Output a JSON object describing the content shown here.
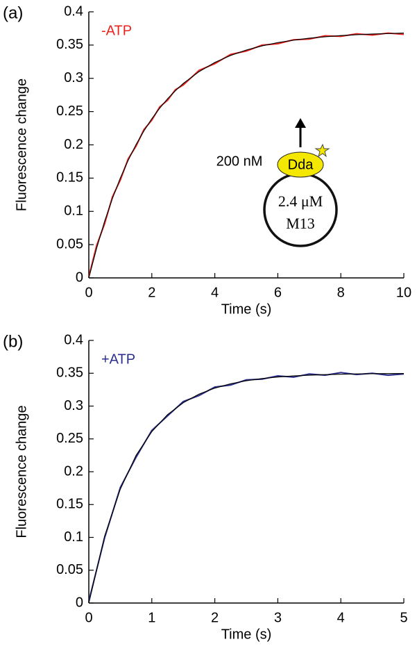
{
  "chart_data": [
    {
      "type": "line",
      "panel_label": "(a)",
      "x_label": "Time (s)",
      "y_label": "Fluorescence change",
      "x": [
        0,
        0.25,
        0.5,
        0.75,
        1,
        1.25,
        1.5,
        1.75,
        2,
        2.25,
        2.5,
        2.75,
        3,
        3.5,
        4,
        4.5,
        5,
        5.5,
        6,
        6.5,
        7,
        7.5,
        8,
        8.5,
        9,
        9.5,
        10
      ],
      "series": [
        {
          "name": "-ATP",
          "color": "#e8231e",
          "values": [
            0.002,
            0.049,
            0.081,
            0.122,
            0.147,
            0.179,
            0.198,
            0.223,
            0.237,
            0.257,
            0.267,
            0.283,
            0.29,
            0.312,
            0.322,
            0.336,
            0.341,
            0.35,
            0.352,
            0.358,
            0.359,
            0.364,
            0.363,
            0.367,
            0.365,
            0.368,
            0.366
          ]
        },
        {
          "color": "#000000",
          "values": [
            0,
            0.0451,
            0.0847,
            0.1195,
            0.15,
            0.1769,
            0.2004,
            0.2211,
            0.2392,
            0.2552,
            0.2692,
            0.2815,
            0.2923,
            0.3101,
            0.3238,
            0.3344,
            0.3425,
            0.3488,
            0.3537,
            0.3574,
            0.3603,
            0.3625,
            0.3642,
            0.3656,
            0.3666,
            0.3673,
            0.368
          ]
        }
      ],
      "annotations": [
        "200 nM",
        "Dda",
        "2.4 μM",
        "M13"
      ],
      "xlim": [
        0,
        10
      ],
      "xticks": [
        0,
        2,
        4,
        6,
        8,
        10
      ],
      "ylim": [
        0,
        0.4
      ],
      "yticks": [
        0,
        0.05,
        0.1,
        0.15,
        0.2,
        0.25,
        0.3,
        0.35,
        0.4
      ]
    },
    {
      "type": "line",
      "panel_label": "(b)",
      "x_label": "Time (s)",
      "y_label": "Fluorescence change",
      "x": [
        0,
        0.25,
        0.5,
        0.75,
        1,
        1.25,
        1.5,
        1.75,
        2,
        2.25,
        2.5,
        2.75,
        3,
        3.25,
        3.5,
        3.75,
        4,
        4.25,
        4.5,
        4.75,
        5
      ],
      "series": [
        {
          "name": "+ATP",
          "color": "#2b2e8c",
          "values": [
            0.003,
            0.099,
            0.176,
            0.222,
            0.263,
            0.285,
            0.307,
            0.316,
            0.329,
            0.332,
            0.34,
            0.341,
            0.346,
            0.344,
            0.349,
            0.347,
            0.351,
            0.348,
            0.35,
            0.347,
            0.349
          ]
        },
        {
          "color": "#000000",
          "values": [
            0,
            0.1015,
            0.1736,
            0.2248,
            0.2611,
            0.2869,
            0.3052,
            0.3182,
            0.3274,
            0.3339,
            0.3386,
            0.3419,
            0.3443,
            0.3459,
            0.3471,
            0.3479,
            0.3485,
            0.349,
            0.3493,
            0.3495,
            0.3496
          ]
        }
      ],
      "xlim": [
        0,
        5
      ],
      "xticks": [
        0,
        1,
        2,
        3,
        4,
        5
      ],
      "ylim": [
        0,
        0.4
      ],
      "yticks": [
        0,
        0.05,
        0.1,
        0.15,
        0.2,
        0.25,
        0.3,
        0.35,
        0.4
      ]
    }
  ]
}
